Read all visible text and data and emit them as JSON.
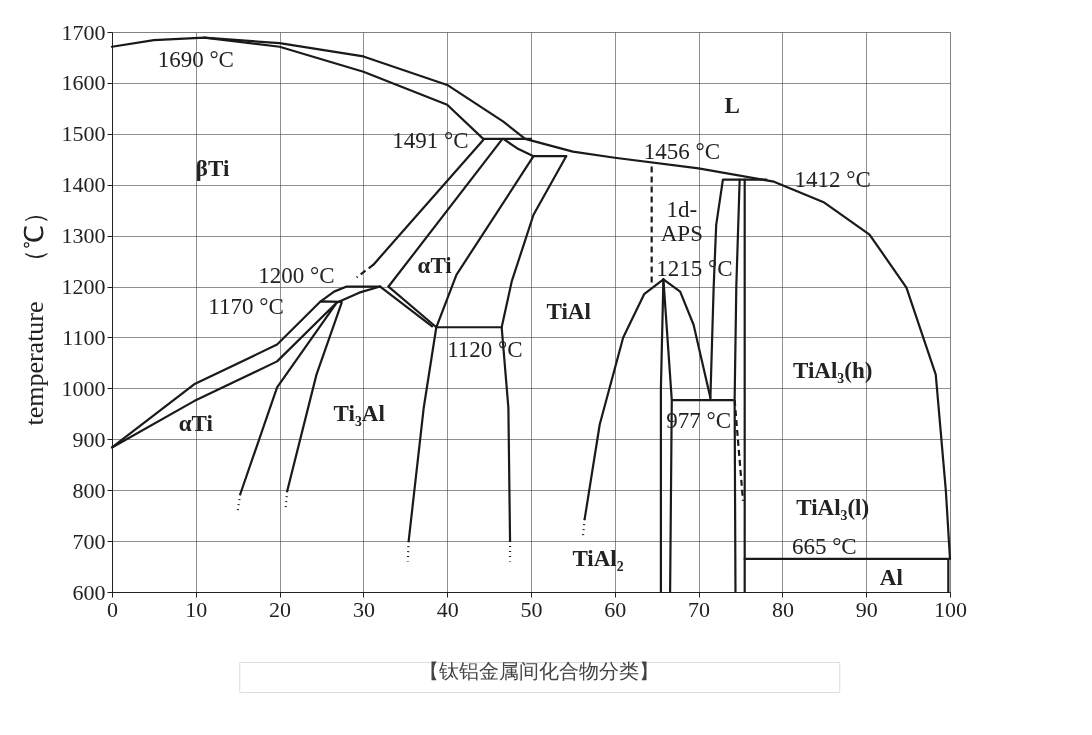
{
  "chart_data": {
    "type": "line",
    "ylabel": "temperature　（℃）",
    "xlim": [
      0,
      100
    ],
    "ylim": [
      600,
      1700
    ],
    "xticks": [
      0,
      10,
      20,
      30,
      40,
      50,
      60,
      70,
      80,
      90,
      100
    ],
    "yticks": [
      600,
      700,
      800,
      900,
      1000,
      1100,
      1200,
      1300,
      1400,
      1500,
      1600,
      1700
    ],
    "grid": true,
    "marker": "none",
    "line_style": "solid",
    "series": [
      {
        "color": "#1a1a1a",
        "x": [
          0,
          5,
          11,
          20,
          30,
          40,
          46.7,
          49.3,
          55,
          60,
          70,
          79,
          85,
          90.4,
          94.8,
          98.3,
          99.5,
          100
        ],
        "values": [
          1671,
          1684,
          1689,
          1678,
          1652,
          1596,
          1524,
          1490,
          1465,
          1453,
          1432,
          1406,
          1365,
          1302,
          1198,
          1027,
          800,
          665
        ]
      },
      {
        "color": "#1a1a1a",
        "x": [
          11,
          20,
          30,
          40,
          44.3,
          50
        ],
        "values": [
          1689,
          1671,
          1622,
          1557,
          1490,
          1490
        ]
      },
      {
        "color": "#1a1a1a",
        "x": [
          46.7,
          48.5,
          50.3,
          54.2
        ],
        "values": [
          1490,
          1470,
          1456,
          1456
        ]
      },
      {
        "color": "#1a1a1a",
        "x": [
          44.3,
          31.2
        ],
        "values": [
          1488,
          1243
        ]
      },
      {
        "color": "#1a1a1a",
        "line_style": "dashed",
        "x": [
          31.2,
          29.2
        ],
        "values": [
          1243,
          1218
        ]
      },
      {
        "color": "#1a1a1a",
        "x": [
          46.5,
          33
        ],
        "values": [
          1488,
          1200
        ]
      },
      {
        "color": "#1a1a1a",
        "x": [
          50.3,
          41.1,
          38.7,
          37.2,
          35.4
        ],
        "values": [
          1456,
          1223,
          1120,
          962,
          700
        ]
      },
      {
        "color": "#1a1a1a",
        "x": [
          54.2,
          50.3,
          47.7,
          46.5,
          47.3,
          47.5
        ],
        "values": [
          1456,
          1341,
          1210,
          1120,
          962,
          700
        ]
      },
      {
        "color": "#1a1a1a",
        "x": [
          38.7,
          46.5
        ],
        "values": [
          1120,
          1120
        ]
      },
      {
        "color": "#1a1a1a",
        "x": [
          32,
          38.2
        ],
        "values": [
          1200,
          1122
        ]
      },
      {
        "color": "#1a1a1a",
        "x": [
          33,
          38.7
        ],
        "values": [
          1200,
          1120
        ]
      },
      {
        "color": "#1a1a1a",
        "x": [
          24.9,
          26.5,
          28,
          32
        ],
        "values": [
          1171,
          1190,
          1200,
          1200
        ]
      },
      {
        "color": "#1a1a1a",
        "x": [
          26.8,
          29.5,
          32
        ],
        "values": [
          1168,
          1188,
          1200
        ]
      },
      {
        "color": "#1a1a1a",
        "x": [
          0,
          9.8,
          19.7,
          24.9,
          27.4
        ],
        "values": [
          884,
          1008,
          1086,
          1171,
          1170
        ]
      },
      {
        "color": "#1a1a1a",
        "x": [
          0,
          9.8,
          19.7,
          26.8,
          19.7,
          15.3
        ],
        "values": [
          884,
          975,
          1053,
          1168,
          1002,
          792
        ]
      },
      {
        "color": "#1a1a1a",
        "x": [
          27.4,
          24.4,
          20.9
        ],
        "values": [
          1168,
          1027,
          798
        ]
      },
      {
        "color": "#1a1a1a",
        "line_style": "dotted",
        "x": [
          15.3,
          15
        ],
        "values": [
          792,
          760
        ]
      },
      {
        "color": "#1a1a1a",
        "line_style": "dotted",
        "x": [
          20.9,
          20.7
        ],
        "values": [
          798,
          760
        ]
      },
      {
        "color": "#1a1a1a",
        "line_style": "dotted",
        "x": [
          35.4,
          35.3
        ],
        "values": [
          700,
          660
        ]
      },
      {
        "color": "#1a1a1a",
        "line_style": "dotted",
        "x": [
          47.5,
          47.5
        ],
        "values": [
          700,
          660
        ]
      },
      {
        "color": "#1a1a1a",
        "x": [
          56.4,
          58.2,
          61,
          63.5,
          65.8,
          67.8,
          69.4,
          71.4
        ],
        "values": [
          743,
          929,
          1100,
          1185,
          1214,
          1190,
          1125,
          982
        ]
      },
      {
        "color": "#1a1a1a",
        "line_style": "dotted",
        "x": [
          56.4,
          56.2
        ],
        "values": [
          743,
          710
        ]
      },
      {
        "color": "#1a1a1a",
        "x": [
          65.5,
          65.5,
          65.8
        ],
        "values": [
          600,
          1000,
          1214
        ]
      },
      {
        "color": "#1a1a1a",
        "x": [
          65.8,
          66.8,
          66.6
        ],
        "values": [
          1214,
          977,
          600
        ]
      },
      {
        "color": "#1a1a1a",
        "x": [
          66.9,
          74.1
        ],
        "values": [
          977,
          977
        ]
      },
      {
        "color": "#1a1a1a",
        "line_style": "dashed",
        "x": [
          64.4,
          64.4
        ],
        "values": [
          1436,
          1204
        ]
      },
      {
        "color": "#1a1a1a",
        "x": [
          71.4,
          71.8,
          72.1,
          72.9,
          78.1
        ],
        "values": [
          977,
          1200,
          1321,
          1410,
          1410
        ]
      },
      {
        "color": "#1a1a1a",
        "x": [
          74.9,
          74.5,
          74.3,
          74.4
        ],
        "values": [
          1410,
          1200,
          977,
          600
        ]
      },
      {
        "color": "#1a1a1a",
        "x": [
          75.5,
          75.5
        ],
        "values": [
          1410,
          600
        ]
      },
      {
        "color": "#1a1a1a",
        "line_style": "dashed",
        "x": [
          74.3,
          75.3
        ],
        "values": [
          977,
          779
        ]
      },
      {
        "color": "#1a1a1a",
        "x": [
          75.5,
          99.8,
          99.8
        ],
        "values": [
          665,
          665,
          600
        ]
      }
    ],
    "annotations": [
      "1690 °C",
      "βTi",
      "1491 °C",
      "L",
      "1456 °C",
      "1412 °C",
      "1d-\nAPS",
      "1200 °C",
      "1170 °C",
      "αTi",
      "1120 °C",
      "TiAl",
      "1215 °C",
      "TiAl₃(h)",
      "977 °C",
      "αTi",
      "Ti₃Al",
      "TiAl₃(l)",
      "TiAl₂",
      "665 °C",
      "Al",
      "【钛铝金属间化合物分类】"
    ]
  }
}
